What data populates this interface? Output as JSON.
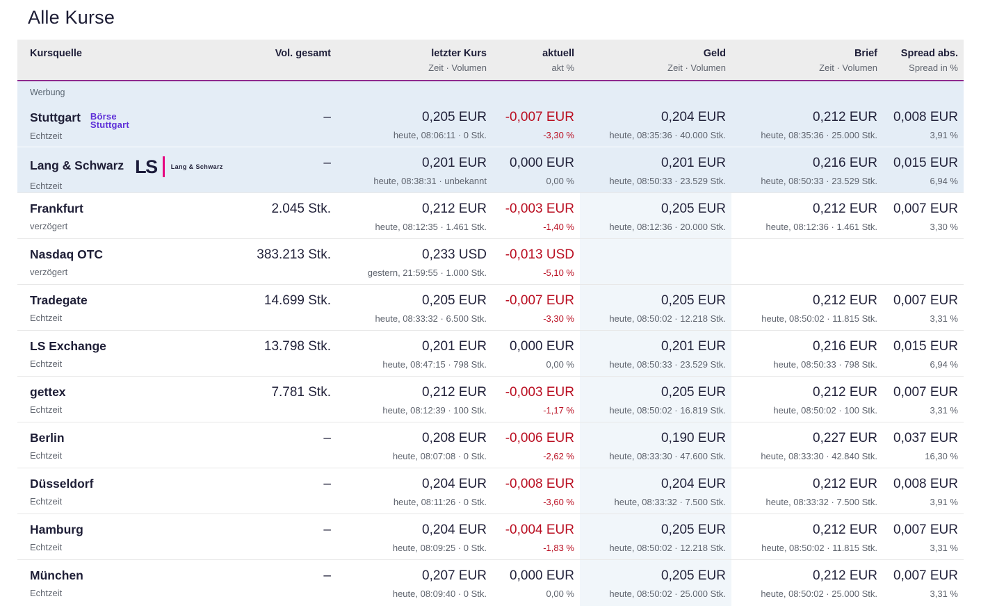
{
  "page": {
    "title": "Alle Kurse"
  },
  "colors": {
    "accent_rule": "#8e2a8d",
    "negative": "#ba0f22",
    "ad_row_bg": "#e4edf6",
    "header_bg": "#ededed",
    "geld_band_bg": "#f1f6fa",
    "text_primary": "#20203a",
    "text_secondary": "#5f646e",
    "boerse_stuttgart_purple": "#5e2fd8",
    "ls_magenta": "#e6007e"
  },
  "logos": {
    "boerse_stuttgart": {
      "line1": "Börse",
      "line2": "Stuttgart"
    },
    "lang_schwarz": {
      "monogram": "LS",
      "label": "Lang & Schwarz"
    }
  },
  "table": {
    "ad_label": "Werbung",
    "columns": {
      "kursquelle": {
        "label": "Kursquelle",
        "sub": ""
      },
      "vol_gesamt": {
        "label": "Vol. gesamt",
        "sub": ""
      },
      "letzter_kurs": {
        "label": "letzter Kurs",
        "sub": "Zeit · Volumen"
      },
      "aktuell": {
        "label": "aktuell",
        "sub": "akt %"
      },
      "geld": {
        "label": "Geld",
        "sub": "Zeit · Volumen"
      },
      "brief": {
        "label": "Brief",
        "sub": "Zeit · Volumen"
      },
      "spread": {
        "label": "Spread abs.",
        "sub": "Spread in %"
      }
    },
    "rows": [
      {
        "name": "Stuttgart",
        "quality": "Echtzeit",
        "logo": "boerse-stuttgart",
        "ad": true,
        "vol_gesamt": "–",
        "letzter_kurs": {
          "value": "0,205 EUR",
          "sub": "heute, 08:06:11 · 0 Stk."
        },
        "aktuell": {
          "value": "-0,007 EUR",
          "sub": "-3,30 %",
          "neg": true
        },
        "geld": {
          "value": "0,204 EUR",
          "sub": "heute, 08:35:36 · 40.000 Stk."
        },
        "brief": {
          "value": "0,212 EUR",
          "sub": "heute, 08:35:36 · 25.000 Stk."
        },
        "spread": {
          "value": "0,008 EUR",
          "sub": "3,91 %"
        }
      },
      {
        "name": "Lang & Schwarz",
        "quality": "Echtzeit",
        "logo": "lang-schwarz",
        "ad": true,
        "vol_gesamt": "–",
        "letzter_kurs": {
          "value": "0,201 EUR",
          "sub": "heute, 08:38:31 · unbekannt"
        },
        "aktuell": {
          "value": "0,000 EUR",
          "sub": "0,00 %",
          "neg": false
        },
        "geld": {
          "value": "0,201 EUR",
          "sub": "heute, 08:50:33 · 23.529 Stk."
        },
        "brief": {
          "value": "0,216 EUR",
          "sub": "heute, 08:50:33 · 23.529 Stk."
        },
        "spread": {
          "value": "0,015 EUR",
          "sub": "6,94 %"
        }
      },
      {
        "name": "Frankfurt",
        "quality": "verzögert",
        "logo": "",
        "ad": false,
        "vol_gesamt": "2.045 Stk.",
        "letzter_kurs": {
          "value": "0,212 EUR",
          "sub": "heute, 08:12:35 · 1.461 Stk."
        },
        "aktuell": {
          "value": "-0,003 EUR",
          "sub": "-1,40 %",
          "neg": true
        },
        "geld": {
          "value": "0,205 EUR",
          "sub": "heute, 08:12:36 · 20.000 Stk."
        },
        "brief": {
          "value": "0,212 EUR",
          "sub": "heute, 08:12:36 · 1.461 Stk."
        },
        "spread": {
          "value": "0,007 EUR",
          "sub": "3,30 %"
        }
      },
      {
        "name": "Nasdaq OTC",
        "quality": "verzögert",
        "logo": "",
        "ad": false,
        "vol_gesamt": "383.213 Stk.",
        "letzter_kurs": {
          "value": "0,233 USD",
          "sub": "gestern, 21:59:55 · 1.000 Stk."
        },
        "aktuell": {
          "value": "-0,013 USD",
          "sub": "-5,10 %",
          "neg": true
        },
        "geld": {
          "value": "",
          "sub": ""
        },
        "brief": {
          "value": "",
          "sub": ""
        },
        "spread": {
          "value": "",
          "sub": ""
        }
      },
      {
        "name": "Tradegate",
        "quality": "Echtzeit",
        "logo": "",
        "ad": false,
        "vol_gesamt": "14.699 Stk.",
        "letzter_kurs": {
          "value": "0,205 EUR",
          "sub": "heute, 08:33:32 · 6.500 Stk."
        },
        "aktuell": {
          "value": "-0,007 EUR",
          "sub": "-3,30 %",
          "neg": true
        },
        "geld": {
          "value": "0,205 EUR",
          "sub": "heute, 08:50:02 · 12.218 Stk."
        },
        "brief": {
          "value": "0,212 EUR",
          "sub": "heute, 08:50:02 · 11.815 Stk."
        },
        "spread": {
          "value": "0,007 EUR",
          "sub": "3,31 %"
        }
      },
      {
        "name": "LS Exchange",
        "quality": "Echtzeit",
        "logo": "",
        "ad": false,
        "vol_gesamt": "13.798 Stk.",
        "letzter_kurs": {
          "value": "0,201 EUR",
          "sub": "heute, 08:47:15 · 798 Stk."
        },
        "aktuell": {
          "value": "0,000 EUR",
          "sub": "0,00 %",
          "neg": false
        },
        "geld": {
          "value": "0,201 EUR",
          "sub": "heute, 08:50:33 · 23.529 Stk."
        },
        "brief": {
          "value": "0,216 EUR",
          "sub": "heute, 08:50:33 · 798 Stk."
        },
        "spread": {
          "value": "0,015 EUR",
          "sub": "6,94 %"
        }
      },
      {
        "name": "gettex",
        "quality": "Echtzeit",
        "logo": "",
        "ad": false,
        "vol_gesamt": "7.781 Stk.",
        "letzter_kurs": {
          "value": "0,212 EUR",
          "sub": "heute, 08:12:39 · 100 Stk."
        },
        "aktuell": {
          "value": "-0,003 EUR",
          "sub": "-1,17 %",
          "neg": true
        },
        "geld": {
          "value": "0,205 EUR",
          "sub": "heute, 08:50:02 · 16.819 Stk."
        },
        "brief": {
          "value": "0,212 EUR",
          "sub": "heute, 08:50:02 · 100 Stk."
        },
        "spread": {
          "value": "0,007 EUR",
          "sub": "3,31 %"
        }
      },
      {
        "name": "Berlin",
        "quality": "Echtzeit",
        "logo": "",
        "ad": false,
        "vol_gesamt": "–",
        "letzter_kurs": {
          "value": "0,208 EUR",
          "sub": "heute, 08:07:08 · 0 Stk."
        },
        "aktuell": {
          "value": "-0,006 EUR",
          "sub": "-2,62 %",
          "neg": true
        },
        "geld": {
          "value": "0,190 EUR",
          "sub": "heute, 08:33:30 · 47.600 Stk."
        },
        "brief": {
          "value": "0,227 EUR",
          "sub": "heute, 08:33:30 · 42.840 Stk."
        },
        "spread": {
          "value": "0,037 EUR",
          "sub": "16,30 %"
        }
      },
      {
        "name": "Düsseldorf",
        "quality": "Echtzeit",
        "logo": "",
        "ad": false,
        "vol_gesamt": "–",
        "letzter_kurs": {
          "value": "0,204 EUR",
          "sub": "heute, 08:11:26 · 0 Stk."
        },
        "aktuell": {
          "value": "-0,008 EUR",
          "sub": "-3,60 %",
          "neg": true
        },
        "geld": {
          "value": "0,204 EUR",
          "sub": "heute, 08:33:32 · 7.500 Stk."
        },
        "brief": {
          "value": "0,212 EUR",
          "sub": "heute, 08:33:32 · 7.500 Stk."
        },
        "spread": {
          "value": "0,008 EUR",
          "sub": "3,91 %"
        }
      },
      {
        "name": "Hamburg",
        "quality": "Echtzeit",
        "logo": "",
        "ad": false,
        "vol_gesamt": "–",
        "letzter_kurs": {
          "value": "0,204 EUR",
          "sub": "heute, 08:09:25 · 0 Stk."
        },
        "aktuell": {
          "value": "-0,004 EUR",
          "sub": "-1,83 %",
          "neg": true
        },
        "geld": {
          "value": "0,205 EUR",
          "sub": "heute, 08:50:02 · 12.218 Stk."
        },
        "brief": {
          "value": "0,212 EUR",
          "sub": "heute, 08:50:02 · 11.815 Stk."
        },
        "spread": {
          "value": "0,007 EUR",
          "sub": "3,31 %"
        }
      },
      {
        "name": "München",
        "quality": "Echtzeit",
        "logo": "",
        "ad": false,
        "vol_gesamt": "–",
        "letzter_kurs": {
          "value": "0,207 EUR",
          "sub": "heute, 08:09:40 · 0 Stk."
        },
        "aktuell": {
          "value": "0,000 EUR",
          "sub": "0,00 %",
          "neg": false
        },
        "geld": {
          "value": "0,205 EUR",
          "sub": "heute, 08:50:02 · 25.000 Stk."
        },
        "brief": {
          "value": "0,212 EUR",
          "sub": "heute, 08:50:02 · 25.000 Stk."
        },
        "spread": {
          "value": "0,007 EUR",
          "sub": "3,31 %"
        }
      }
    ]
  }
}
